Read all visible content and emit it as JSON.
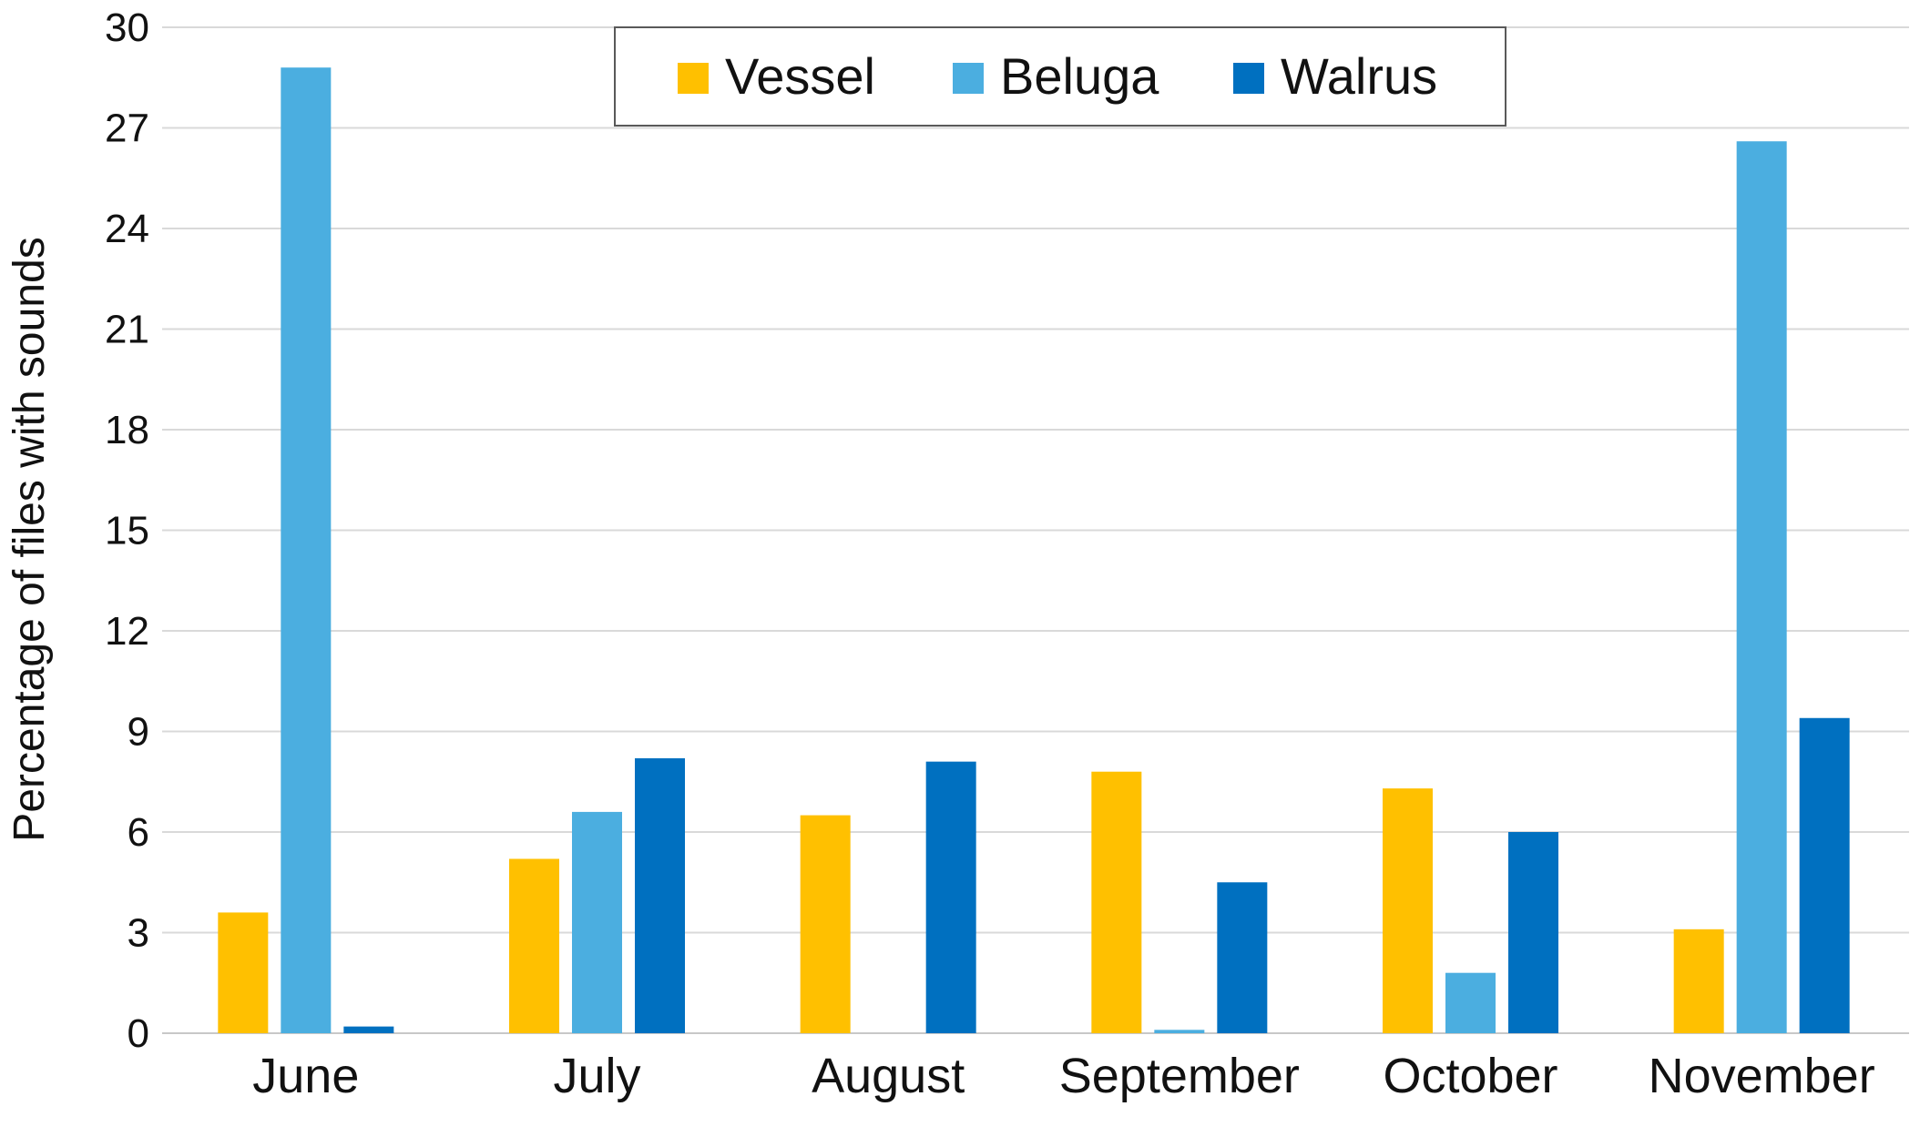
{
  "chart_data": {
    "type": "bar",
    "title": "",
    "xlabel": "",
    "ylabel": "Percentage of files with sounds",
    "ylim": [
      0,
      30
    ],
    "yticks": [
      0,
      3,
      6,
      9,
      12,
      15,
      18,
      21,
      24,
      27,
      30
    ],
    "grid": true,
    "legend_position": "top-center",
    "categories": [
      "June",
      "July",
      "August",
      "September",
      "October",
      "November"
    ],
    "series": [
      {
        "name": "Vessel",
        "color": "#FFC000",
        "values": [
          3.6,
          5.2,
          6.5,
          7.8,
          7.3,
          3.1
        ]
      },
      {
        "name": "Beluga",
        "color": "#4BAEE0",
        "values": [
          28.8,
          6.6,
          0,
          0.1,
          1.8,
          26.6
        ]
      },
      {
        "name": "Walrus",
        "color": "#0070C0",
        "values": [
          0.2,
          8.2,
          8.1,
          4.5,
          6.0,
          9.4
        ]
      }
    ]
  }
}
